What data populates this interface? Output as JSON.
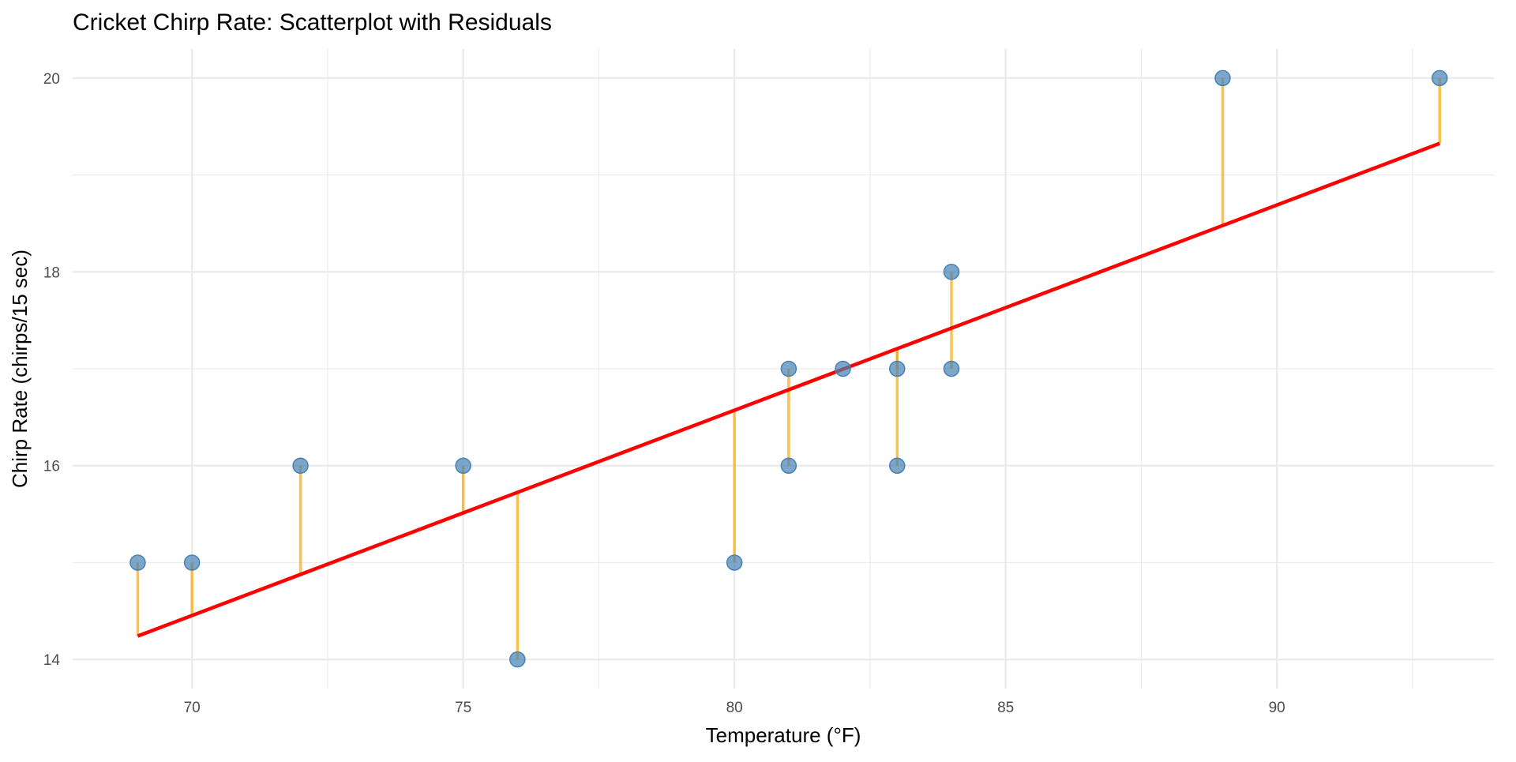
{
  "chart_data": {
    "type": "scatter",
    "title": "Cricket Chirp Rate: Scatterplot with Residuals",
    "xlabel": "Temperature (°F)",
    "ylabel": "Chirp Rate (chirps/15 sec)",
    "xlim": [
      67.8,
      94.0
    ],
    "ylim": [
      13.7,
      20.3
    ],
    "x_ticks": [
      70,
      75,
      80,
      85,
      90
    ],
    "y_ticks": [
      14,
      16,
      18,
      20
    ],
    "grid": true,
    "points": [
      {
        "x": 69,
        "y": 15
      },
      {
        "x": 70,
        "y": 15
      },
      {
        "x": 72,
        "y": 16
      },
      {
        "x": 75,
        "y": 16
      },
      {
        "x": 76,
        "y": 14
      },
      {
        "x": 80,
        "y": 15
      },
      {
        "x": 81,
        "y": 17
      },
      {
        "x": 81,
        "y": 16
      },
      {
        "x": 82,
        "y": 17
      },
      {
        "x": 83,
        "y": 17
      },
      {
        "x": 83,
        "y": 16
      },
      {
        "x": 84,
        "y": 18
      },
      {
        "x": 84,
        "y": 17
      },
      {
        "x": 89,
        "y": 20
      },
      {
        "x": 93,
        "y": 20
      }
    ],
    "fit": "linear regression (least squares)",
    "colors": {
      "points": "#4682B4",
      "residuals": "#FFA500",
      "fit_line": "#FF0000",
      "grid": "#EBEBEB"
    }
  }
}
